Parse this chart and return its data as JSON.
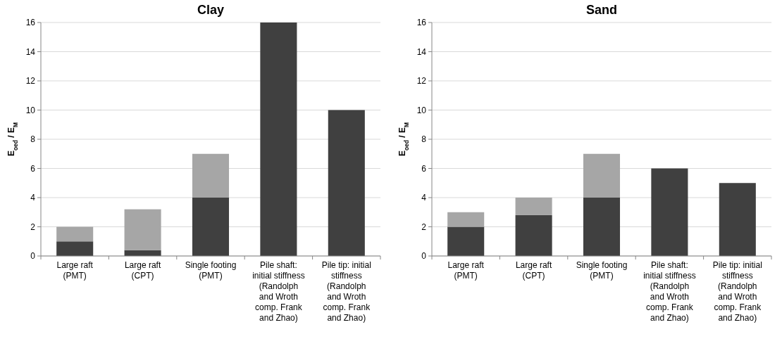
{
  "chart_data": [
    {
      "type": "bar",
      "title": "Clay",
      "ylabel": "E$_{oed}$ / E$_{M}$",
      "stacked": true,
      "grid": "y",
      "ylim": [
        0,
        16
      ],
      "yticks": [
        0,
        2,
        4,
        6,
        8,
        10,
        12,
        14,
        16
      ],
      "categories": [
        "Large raft\n(PMT)",
        "Large raft\n(CPT)",
        "Single footing\n(PMT)",
        "Pile shaft:\ninitial stiffness\n(Randolph\nand Wroth\ncomp. Frank\nand Zhao)",
        "Pile tip: initial\nstiffness\n(Randolph\nand Wroth\ncomp. Frank\nand Zhao)"
      ],
      "series": [
        {
          "color": "#404040",
          "values": [
            1,
            0.4,
            4,
            16,
            10
          ]
        },
        {
          "color": "#a6a6a6",
          "values": [
            1,
            2.8,
            3,
            0,
            0
          ]
        }
      ]
    },
    {
      "type": "bar",
      "title": "Sand",
      "ylabel": "E$_{oed}$ / E$_{M}$",
      "stacked": true,
      "grid": "y",
      "ylim": [
        0,
        16
      ],
      "yticks": [
        0,
        2,
        4,
        6,
        8,
        10,
        12,
        14,
        16
      ],
      "categories": [
        "Large raft\n(PMT)",
        "Large raft\n(CPT)",
        "Single footing\n(PMT)",
        "Pile shaft:\ninitial stiffness\n(Randolph\nand Wroth\ncomp. Frank\nand Zhao)",
        "Pile tip: initial\nstiffness\n(Randolph\nand Wroth\ncomp. Frank\nand Zhao)"
      ],
      "series": [
        {
          "color": "#404040",
          "values": [
            2,
            2.8,
            4,
            6,
            5
          ]
        },
        {
          "color": "#a6a6a6",
          "values": [
            1,
            1.2,
            3,
            0,
            0
          ]
        }
      ]
    }
  ]
}
